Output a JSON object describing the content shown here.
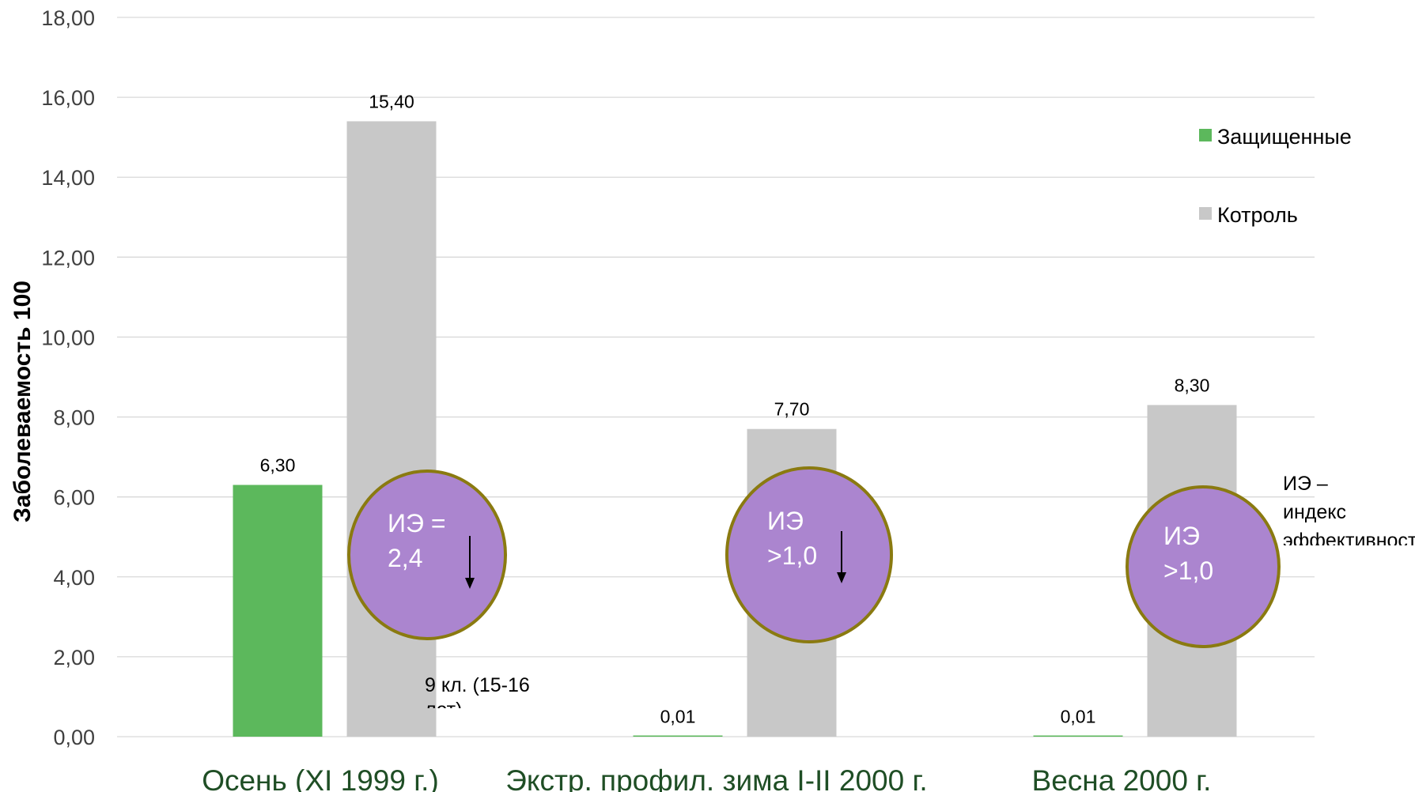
{
  "chart_data": {
    "type": "bar",
    "ylabel": "Заболеваемость  100",
    "ylim": [
      0,
      18
    ],
    "yticks": [
      "0,00",
      "2,00",
      "4,00",
      "6,00",
      "8,00",
      "10,00",
      "12,00",
      "14,00",
      "16,00",
      "18,00"
    ],
    "grid": true,
    "legend_position": "right",
    "categories": [
      "Осень (XI 1999 г.)",
      "Экстр. профил. зима I-II 2000 г.",
      "Весна 2000 г."
    ],
    "series": [
      {
        "name": "Защищенные",
        "color": "#5cb85c",
        "values": [
          6.3,
          0.01,
          0.01
        ],
        "labels": [
          "6,30",
          "0,01",
          "0,01"
        ]
      },
      {
        "name": "Котроль",
        "color": "#c8c8c8",
        "values": [
          15.4,
          7.7,
          8.3
        ],
        "labels": [
          "15,40",
          "7,70",
          "8,30"
        ]
      }
    ],
    "annotations": {
      "circles": [
        {
          "lines": [
            "ИЭ =",
            "2,4"
          ],
          "arrow": true
        },
        {
          "lines": [
            "ИЭ",
            ">1,0"
          ],
          "arrow": true
        },
        {
          "lines": [
            "ИЭ",
            ">1,0"
          ],
          "arrow": false
        }
      ],
      "note_left": [
        "9 кл. (15-16",
        "лет)"
      ],
      "note_right": [
        "ИЭ –",
        "индекс",
        "эффективности"
      ]
    },
    "colors": {
      "circle_fill": "#ab85cf",
      "circle_stroke": "#8a7a10",
      "category_text": "#1f4e25"
    }
  }
}
